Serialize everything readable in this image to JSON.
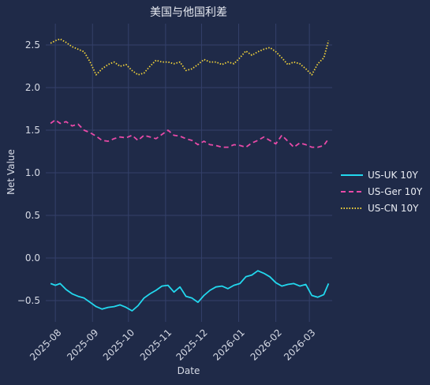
{
  "chart_data": {
    "type": "line",
    "title": "美国与他国利差",
    "xlabel": "Date",
    "ylabel": "Net Value",
    "x_range": [
      "2025-07-24",
      "2026-03-20"
    ],
    "ylim": [
      -0.75,
      2.75
    ],
    "y_ticks": [
      -0.5,
      0.0,
      0.5,
      1.0,
      1.5,
      2.0,
      2.5
    ],
    "x_ticks": [
      "2025-08-01",
      "2025-09-01",
      "2025-10-01",
      "2025-11-01",
      "2025-12-01",
      "2026-01-01",
      "2026-02-01",
      "2026-03-01"
    ],
    "x_tick_labels": [
      "2025-08",
      "2025-09",
      "2025-10",
      "2025-11",
      "2025-12",
      "2026-01",
      "2026-02",
      "2026-03"
    ],
    "y_tick_labels": [
      "−0.5",
      "0.0",
      "0.5",
      "1.0",
      "1.5",
      "2.0",
      "2.5"
    ],
    "grid": true,
    "legend_position": "right",
    "series": [
      {
        "name": "US-UK 10Y",
        "color": "#22d8ee",
        "dash": "solid",
        "x": [
          "2025-07-28",
          "2025-08-01",
          "2025-08-05",
          "2025-08-10",
          "2025-08-15",
          "2025-08-20",
          "2025-08-25",
          "2025-08-30",
          "2025-09-04",
          "2025-09-09",
          "2025-09-14",
          "2025-09-19",
          "2025-09-24",
          "2025-09-29",
          "2025-10-04",
          "2025-10-09",
          "2025-10-14",
          "2025-10-19",
          "2025-10-24",
          "2025-10-29",
          "2025-11-03",
          "2025-11-08",
          "2025-11-13",
          "2025-11-18",
          "2025-11-23",
          "2025-11-28",
          "2025-12-03",
          "2025-12-08",
          "2025-12-13",
          "2025-12-18",
          "2025-12-23",
          "2025-12-28",
          "2026-01-02",
          "2026-01-07",
          "2026-01-12",
          "2026-01-17",
          "2026-01-22",
          "2026-01-27",
          "2026-02-01",
          "2026-02-06",
          "2026-02-11",
          "2026-02-16",
          "2026-02-21",
          "2026-02-26",
          "2026-03-03",
          "2026-03-08",
          "2026-03-13",
          "2026-03-17"
        ],
        "y": [
          -0.3,
          -0.32,
          -0.3,
          -0.37,
          -0.42,
          -0.45,
          -0.47,
          -0.52,
          -0.57,
          -0.6,
          -0.58,
          -0.57,
          -0.55,
          -0.58,
          -0.62,
          -0.56,
          -0.47,
          -0.42,
          -0.38,
          -0.33,
          -0.32,
          -0.4,
          -0.34,
          -0.45,
          -0.47,
          -0.52,
          -0.44,
          -0.38,
          -0.34,
          -0.33,
          -0.36,
          -0.32,
          -0.3,
          -0.22,
          -0.2,
          -0.15,
          -0.18,
          -0.22,
          -0.29,
          -0.33,
          -0.31,
          -0.3,
          -0.33,
          -0.31,
          -0.44,
          -0.46,
          -0.43,
          -0.3
        ]
      },
      {
        "name": "US-Ger 10Y",
        "color": "#e94aa8",
        "dash": "dashed",
        "x": [
          "2025-07-28",
          "2025-08-01",
          "2025-08-05",
          "2025-08-10",
          "2025-08-15",
          "2025-08-20",
          "2025-08-25",
          "2025-08-30",
          "2025-09-04",
          "2025-09-09",
          "2025-09-14",
          "2025-09-19",
          "2025-09-24",
          "2025-09-29",
          "2025-10-04",
          "2025-10-09",
          "2025-10-14",
          "2025-10-19",
          "2025-10-24",
          "2025-10-29",
          "2025-11-03",
          "2025-11-08",
          "2025-11-13",
          "2025-11-18",
          "2025-11-23",
          "2025-11-28",
          "2025-12-03",
          "2025-12-08",
          "2025-12-13",
          "2025-12-18",
          "2025-12-23",
          "2025-12-28",
          "2026-01-02",
          "2026-01-07",
          "2026-01-12",
          "2026-01-17",
          "2026-01-22",
          "2026-01-27",
          "2026-02-01",
          "2026-02-06",
          "2026-02-11",
          "2026-02-16",
          "2026-02-21",
          "2026-02-26",
          "2026-03-03",
          "2026-03-08",
          "2026-03-13",
          "2026-03-17"
        ],
        "y": [
          1.58,
          1.62,
          1.58,
          1.6,
          1.55,
          1.57,
          1.5,
          1.47,
          1.43,
          1.38,
          1.37,
          1.4,
          1.42,
          1.41,
          1.44,
          1.38,
          1.44,
          1.42,
          1.4,
          1.45,
          1.5,
          1.44,
          1.43,
          1.4,
          1.38,
          1.33,
          1.37,
          1.33,
          1.32,
          1.3,
          1.3,
          1.33,
          1.32,
          1.3,
          1.35,
          1.38,
          1.42,
          1.38,
          1.34,
          1.44,
          1.37,
          1.3,
          1.35,
          1.33,
          1.3,
          1.3,
          1.32,
          1.4
        ]
      },
      {
        "name": "US-CN 10Y",
        "color": "#f2d33a",
        "dash": "dotted",
        "x": [
          "2025-07-28",
          "2025-08-01",
          "2025-08-05",
          "2025-08-10",
          "2025-08-15",
          "2025-08-20",
          "2025-08-25",
          "2025-08-30",
          "2025-09-04",
          "2025-09-09",
          "2025-09-14",
          "2025-09-19",
          "2025-09-24",
          "2025-09-29",
          "2025-10-04",
          "2025-10-09",
          "2025-10-14",
          "2025-10-19",
          "2025-10-24",
          "2025-10-29",
          "2025-11-03",
          "2025-11-08",
          "2025-11-13",
          "2025-11-18",
          "2025-11-23",
          "2025-11-28",
          "2025-12-03",
          "2025-12-08",
          "2025-12-13",
          "2025-12-18",
          "2025-12-23",
          "2025-12-28",
          "2026-01-02",
          "2026-01-07",
          "2026-01-12",
          "2026-01-17",
          "2026-01-22",
          "2026-01-27",
          "2026-02-01",
          "2026-02-06",
          "2026-02-11",
          "2026-02-16",
          "2026-02-21",
          "2026-02-26",
          "2026-03-03",
          "2026-03-08",
          "2026-03-13",
          "2026-03-17"
        ],
        "y": [
          2.52,
          2.55,
          2.57,
          2.53,
          2.48,
          2.45,
          2.42,
          2.3,
          2.15,
          2.22,
          2.27,
          2.3,
          2.25,
          2.27,
          2.2,
          2.15,
          2.17,
          2.25,
          2.32,
          2.3,
          2.3,
          2.28,
          2.3,
          2.2,
          2.22,
          2.27,
          2.33,
          2.3,
          2.3,
          2.27,
          2.3,
          2.28,
          2.35,
          2.43,
          2.38,
          2.42,
          2.45,
          2.47,
          2.42,
          2.35,
          2.27,
          2.3,
          2.28,
          2.22,
          2.15,
          2.28,
          2.35,
          2.55
        ]
      }
    ]
  }
}
